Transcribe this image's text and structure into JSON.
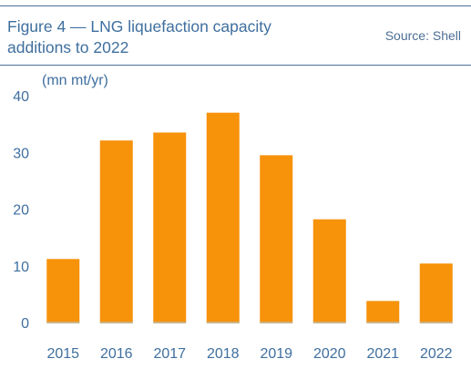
{
  "header": {
    "title": "Figure 4 — LNG liquefaction capacity additions to 2022",
    "source": "Source: Shell"
  },
  "colors": {
    "bar": "#f7920b",
    "bar_base": "#c9b488",
    "text": "#3f6f9f",
    "rule": "#4a6f9a"
  },
  "chart_data": {
    "type": "bar",
    "title": "Figure 4 — LNG liquefaction capacity additions to 2022",
    "ylabel": "(mn mt/yr)",
    "xlabel": "",
    "categories": [
      "2015",
      "2016",
      "2017",
      "2018",
      "2019",
      "2020",
      "2021",
      "2022"
    ],
    "values": [
      11.2,
      32.1,
      33.5,
      37.0,
      29.5,
      18.2,
      3.8,
      10.4
    ],
    "ylim": [
      0,
      40
    ],
    "yticks": [
      0,
      10,
      20,
      30,
      40
    ],
    "grid": false,
    "legend": "none"
  }
}
